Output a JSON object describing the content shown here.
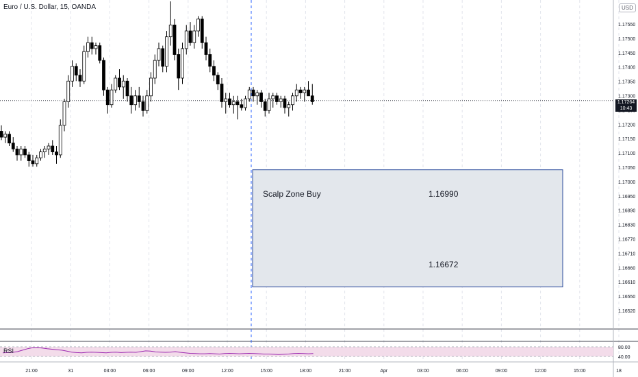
{
  "header": {
    "title": "Euro / U.S. Dollar, 15, OANDA"
  },
  "currency_label": "USD",
  "current_price": {
    "value": "1.17264",
    "countdown": "10:43"
  },
  "zone": {
    "label": "Scalp Zone Buy",
    "upper": "1.16990",
    "lower": "1.16672"
  },
  "rsi": {
    "label": "RSI",
    "levels": [
      "80.00",
      "40.00"
    ]
  },
  "colors": {
    "up": "#ffffff",
    "down": "#000000",
    "zone_fill": "#e3e7ec",
    "zone_border": "#2a4a9b",
    "rsi_line": "#9c27b0",
    "rsi_band": "#f3dcea",
    "crosshair": "#2962ff"
  },
  "chart_data": {
    "type": "candlestick",
    "y_range": [
      1.1649,
      1.176
    ],
    "price_ticks": [
      "1.17550",
      "1.17500",
      "1.17450",
      "1.17400",
      "1.17350",
      "1.17300",
      "1.17250",
      "1.17200",
      "1.17150",
      "1.17100",
      "1.17050",
      "1.17000",
      "1.16950",
      "1.16890",
      "1.16830",
      "1.16770",
      "1.16710",
      "1.16660",
      "1.16610",
      "1.16550",
      "1.16520"
    ],
    "time_ticks": [
      "21:00",
      "31",
      "03:00",
      "06:00",
      "09:00",
      "12:00",
      "15:00",
      "18:00",
      "21:00",
      "Apr",
      "03:00",
      "06:00",
      "09:00",
      "12:00",
      "15:00",
      "18"
    ],
    "candles": [
      [
        1.1716,
        1.1718,
        1.1713,
        1.1714
      ],
      [
        1.1714,
        1.1716,
        1.1712,
        1.1715
      ],
      [
        1.1715,
        1.1716,
        1.1711,
        1.1712
      ],
      [
        1.1712,
        1.1714,
        1.1709,
        1.171
      ],
      [
        1.171,
        1.1711,
        1.1706,
        1.1708
      ],
      [
        1.1708,
        1.1711,
        1.1706,
        1.171
      ],
      [
        1.171,
        1.1711,
        1.1707,
        1.1708
      ],
      [
        1.1708,
        1.1709,
        1.1704,
        1.1706
      ],
      [
        1.1706,
        1.1708,
        1.1704,
        1.1705
      ],
      [
        1.1705,
        1.1708,
        1.1704,
        1.1707
      ],
      [
        1.1707,
        1.171,
        1.1706,
        1.1709
      ],
      [
        1.1709,
        1.1711,
        1.1707,
        1.171
      ],
      [
        1.171,
        1.1712,
        1.1708,
        1.1711
      ],
      [
        1.1711,
        1.1713,
        1.1708,
        1.1709
      ],
      [
        1.1709,
        1.1711,
        1.1705,
        1.1708
      ],
      [
        1.1708,
        1.172,
        1.1707,
        1.1718
      ],
      [
        1.1718,
        1.1727,
        1.1716,
        1.1726
      ],
      [
        1.1726,
        1.1735,
        1.1724,
        1.1733
      ],
      [
        1.1733,
        1.174,
        1.1731,
        1.1738
      ],
      [
        1.1738,
        1.1739,
        1.1733,
        1.1735
      ],
      [
        1.1735,
        1.1737,
        1.1731,
        1.1733
      ],
      [
        1.1733,
        1.1745,
        1.1732,
        1.1743
      ],
      [
        1.1743,
        1.1748,
        1.1741,
        1.1746
      ],
      [
        1.1746,
        1.1748,
        1.1742,
        1.1744
      ],
      [
        1.1744,
        1.1746,
        1.1742,
        1.1745
      ],
      [
        1.1745,
        1.1746,
        1.1739,
        1.174
      ],
      [
        1.174,
        1.1741,
        1.1728,
        1.173
      ],
      [
        1.173,
        1.1731,
        1.1722,
        1.1725
      ],
      [
        1.1725,
        1.1732,
        1.1724,
        1.173
      ],
      [
        1.173,
        1.1735,
        1.1729,
        1.1734
      ],
      [
        1.1734,
        1.1737,
        1.173,
        1.1731
      ],
      [
        1.1731,
        1.1735,
        1.1727,
        1.1733
      ],
      [
        1.1733,
        1.1734,
        1.1726,
        1.1728
      ],
      [
        1.1728,
        1.1731,
        1.1722,
        1.1725
      ],
      [
        1.1725,
        1.173,
        1.1723,
        1.1728
      ],
      [
        1.1728,
        1.1731,
        1.1724,
        1.1726
      ],
      [
        1.1726,
        1.1728,
        1.1721,
        1.1723
      ],
      [
        1.1723,
        1.173,
        1.1722,
        1.1728
      ],
      [
        1.1728,
        1.1736,
        1.1726,
        1.1734
      ],
      [
        1.1734,
        1.1742,
        1.1732,
        1.174
      ],
      [
        1.174,
        1.1746,
        1.1738,
        1.1744
      ],
      [
        1.1744,
        1.1745,
        1.1736,
        1.1738
      ],
      [
        1.1738,
        1.175,
        1.1736,
        1.1748
      ],
      [
        1.1748,
        1.176,
        1.1745,
        1.1752
      ],
      [
        1.1752,
        1.1754,
        1.174,
        1.1742
      ],
      [
        1.1742,
        1.1744,
        1.173,
        1.1734
      ],
      [
        1.1734,
        1.1746,
        1.1732,
        1.1744
      ],
      [
        1.1744,
        1.1752,
        1.1742,
        1.175
      ],
      [
        1.175,
        1.1753,
        1.1745,
        1.1746
      ],
      [
        1.1746,
        1.1752,
        1.1744,
        1.175
      ],
      [
        1.175,
        1.1755,
        1.1748,
        1.1754
      ],
      [
        1.1754,
        1.1755,
        1.1744,
        1.1746
      ],
      [
        1.1746,
        1.1748,
        1.174,
        1.1742
      ],
      [
        1.1742,
        1.1744,
        1.1736,
        1.1738
      ],
      [
        1.1738,
        1.174,
        1.1733,
        1.1735
      ],
      [
        1.1735,
        1.1736,
        1.173,
        1.1732
      ],
      [
        1.1732,
        1.1734,
        1.1724,
        1.1726
      ],
      [
        1.1726,
        1.1729,
        1.1722,
        1.1727
      ],
      [
        1.1727,
        1.1729,
        1.1724,
        1.1725
      ],
      [
        1.1725,
        1.1728,
        1.1722,
        1.1726
      ],
      [
        1.1726,
        1.1728,
        1.172,
        1.1725
      ],
      [
        1.1725,
        1.1727,
        1.1723,
        1.1724
      ],
      [
        1.1724,
        1.1728,
        1.1723,
        1.1727
      ],
      [
        1.1727,
        1.1731,
        1.1726,
        1.173
      ],
      [
        1.173,
        1.1731,
        1.1726,
        1.1728
      ],
      [
        1.1728,
        1.173,
        1.1725,
        1.1729
      ],
      [
        1.1729,
        1.173,
        1.1724,
        1.1726
      ],
      [
        1.1726,
        1.1727,
        1.1721,
        1.1723
      ],
      [
        1.1723,
        1.1729,
        1.1722,
        1.1727
      ],
      [
        1.1727,
        1.1729,
        1.1724,
        1.1728
      ],
      [
        1.1728,
        1.1729,
        1.1725,
        1.1726
      ],
      [
        1.1726,
        1.1728,
        1.1724,
        1.1727
      ],
      [
        1.1727,
        1.1728,
        1.1722,
        1.1724
      ],
      [
        1.1724,
        1.1726,
        1.1721,
        1.1725
      ],
      [
        1.1725,
        1.1729,
        1.1723,
        1.1728
      ],
      [
        1.1728,
        1.1732,
        1.1726,
        1.173
      ],
      [
        1.173,
        1.1731,
        1.1727,
        1.1729
      ],
      [
        1.1729,
        1.1731,
        1.1726,
        1.173
      ],
      [
        1.173,
        1.1733,
        1.1728,
        1.1728
      ],
      [
        1.1728,
        1.1732,
        1.1725,
        1.1726
      ]
    ],
    "rsi_values": [
      55,
      56,
      57,
      60,
      66,
      72,
      76,
      77,
      75,
      72,
      70,
      68,
      66,
      62,
      58,
      56,
      55,
      57,
      58,
      57,
      56,
      55,
      57,
      58,
      56,
      57,
      58,
      57,
      60,
      63,
      62,
      59,
      58,
      57,
      58,
      60,
      57,
      55,
      53,
      52,
      51,
      51,
      52,
      51,
      50,
      52,
      53,
      52,
      51,
      52,
      53,
      52,
      51,
      50,
      50,
      49,
      48,
      49,
      50,
      52,
      53,
      52,
      51,
      52
    ],
    "rsi_range": [
      20,
      100
    ]
  }
}
